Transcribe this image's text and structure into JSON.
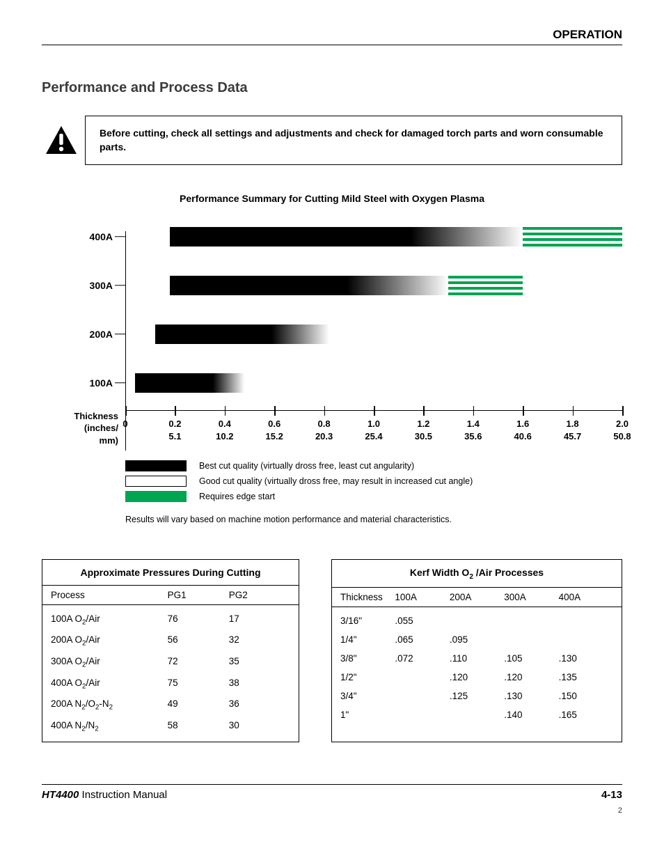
{
  "header": {
    "section": "OPERATION"
  },
  "title": "Performance and Process Data",
  "warning": "Before cutting, check all settings and adjustments and check for damaged torch parts and worn consumable parts.",
  "chart": {
    "title": "Performance Summary for Cutting Mild Steel with Oxygen Plasma",
    "y_labels": [
      "400A",
      "300A",
      "200A",
      "100A"
    ],
    "x_label": "Thickness (inches/ mm)",
    "x_ticks_top": [
      "0",
      "0.2",
      "0.4",
      "0.6",
      "0.8",
      "1.0",
      "1.2",
      "1.4",
      "1.6",
      "1.8",
      "2.0"
    ],
    "x_ticks_bottom": [
      "",
      "5.1",
      "10.2",
      "15.2",
      "20.3",
      "25.4",
      "30.5",
      "35.6",
      "40.6",
      "45.7",
      "50.8"
    ],
    "x_max": 2.0,
    "bars": {
      "400A": {
        "best": [
          0.18,
          1.07
        ],
        "good": [
          1.07,
          1.6
        ],
        "edge": [
          1.6,
          2.0
        ]
      },
      "300A": {
        "best": [
          0.18,
          0.82
        ],
        "good": [
          0.82,
          1.3
        ],
        "edge": [
          1.3,
          1.6
        ]
      },
      "200A": {
        "best": [
          0.12,
          0.55
        ],
        "good": [
          0.55,
          0.82
        ],
        "edge": null
      },
      "100A": {
        "best": [
          0.04,
          0.33
        ],
        "good": [
          0.33,
          0.48
        ],
        "edge": null
      }
    },
    "colors": {
      "best": "#000000",
      "good_gradient_from": "#000000",
      "edge": "#00a551"
    },
    "legend": [
      {
        "key": "best",
        "label": "Best cut quality (virtually dross free, least cut angularity)"
      },
      {
        "key": "good",
        "label": "Good cut quality (virtually dross free, may result in increased cut angle)"
      },
      {
        "key": "edge",
        "label": "Requires edge start"
      }
    ],
    "note": "Results will vary based on machine motion performance and material characteristics."
  },
  "pressures_table": {
    "title": "Approximate Pressures During Cutting",
    "columns": [
      "Process",
      "PG1",
      "PG2"
    ],
    "rows": [
      [
        "100A O2/Air",
        "76",
        "17"
      ],
      [
        "200A O2/Air",
        "56",
        "32"
      ],
      [
        "300A O2/Air",
        "72",
        "35"
      ],
      [
        "400A O2/Air",
        "75",
        "38"
      ],
      [
        "200A N2/O2-N2",
        "49",
        "36"
      ],
      [
        "400A N2/N2",
        "58",
        "30"
      ]
    ]
  },
  "kerf_table": {
    "title": "Kerf Width O2 /Air Processes",
    "columns": [
      "Thickness",
      "100A",
      "200A",
      "300A",
      "400A"
    ],
    "rows": [
      [
        "3/16\"",
        ".055",
        "",
        "",
        ""
      ],
      [
        "1/4\"",
        ".065",
        ".095",
        "",
        ""
      ],
      [
        "3/8\"",
        ".072",
        ".110",
        ".105",
        ".130"
      ],
      [
        "1/2\"",
        "",
        ".120",
        ".120",
        ".135"
      ],
      [
        "3/4\"",
        "",
        ".125",
        ".130",
        ".150"
      ],
      [
        "1\"",
        "",
        "",
        ".140",
        ".165"
      ]
    ]
  },
  "footer": {
    "product": "HT4400",
    "manual": " Instruction Manual",
    "page": "4-13",
    "sheet": "2"
  }
}
